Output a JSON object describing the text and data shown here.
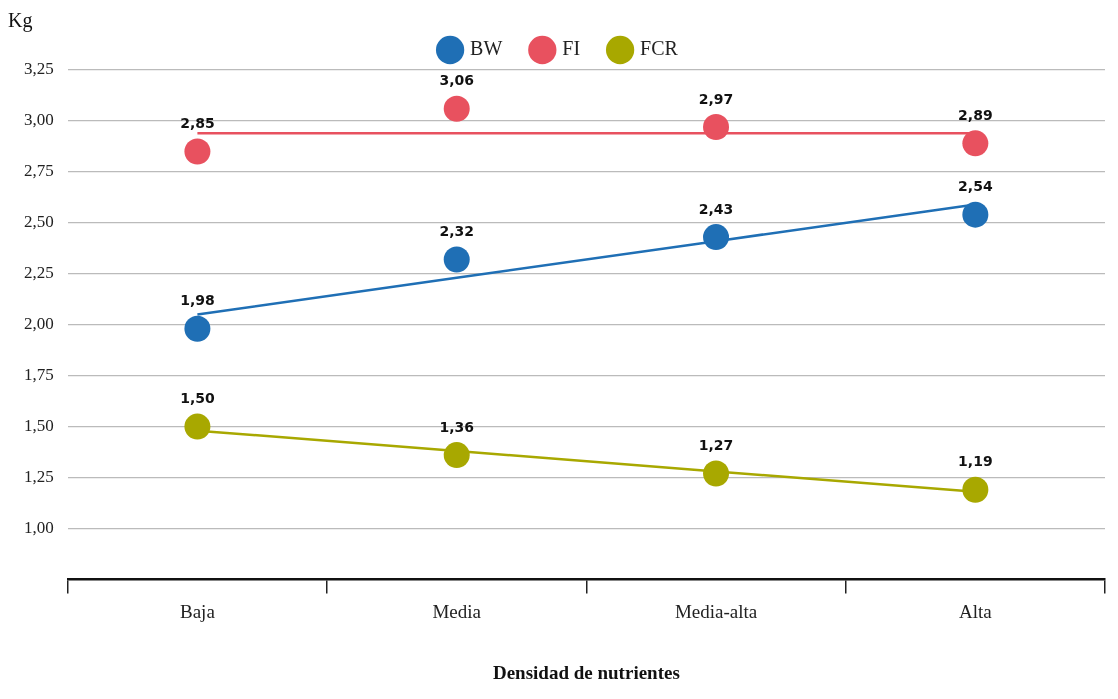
{
  "chart_data": {
    "type": "line",
    "xlabel": "Densidad de nutrientes",
    "ylabel": "Kg",
    "categories": [
      "Baja",
      "Media",
      "Media-alta",
      "Alta"
    ],
    "series": [
      {
        "name": "BW",
        "type": "scatter",
        "color": "#1f6fb5",
        "values": [
          1.98,
          2.32,
          2.43,
          2.54
        ],
        "value_labels": [
          "1,98",
          "2,32",
          "2,43",
          "2,54"
        ]
      },
      {
        "name": "FI",
        "type": "scatter",
        "color": "#e8515f",
        "values": [
          2.85,
          3.06,
          2.97,
          2.89
        ],
        "value_labels": [
          "2,85",
          "3,06",
          "2,97",
          "2,89"
        ]
      },
      {
        "name": "FCR",
        "type": "scatter",
        "color": "#a8a800",
        "values": [
          1.5,
          1.36,
          1.27,
          1.19
        ],
        "value_labels": [
          "1,50",
          "1,36",
          "1,27",
          "1,19"
        ]
      },
      {
        "color": "#1f6fb5",
        "values": [
          2.05,
          2.23,
          2.41,
          2.59
        ],
        "marker": "none"
      },
      {
        "color": "#e8515f",
        "values": [
          2.94,
          2.94,
          2.94,
          2.94
        ],
        "marker": "none"
      },
      {
        "color": "#a8a800",
        "values": [
          1.48,
          1.38,
          1.28,
          1.18
        ],
        "marker": "none"
      }
    ],
    "ylim": [
      0.75,
      3.25
    ],
    "yticks": [
      {
        "value": 1,
        "label": "1,00"
      },
      {
        "value": 1.25,
        "label": "1,25"
      },
      {
        "value": 1.5,
        "label": "1,50"
      },
      {
        "value": 1.75,
        "label": "1,75"
      },
      {
        "value": 2,
        "label": "2,00"
      },
      {
        "value": 2.25,
        "label": "2,25"
      },
      {
        "value": 2.5,
        "label": "2,50"
      },
      {
        "value": 2.75,
        "label": "2,75"
      },
      {
        "value": 3,
        "label": "3,00"
      },
      {
        "value": 3.25,
        "label": "3,25"
      }
    ],
    "grid": "y",
    "legend": "top",
    "marker": "circle"
  }
}
